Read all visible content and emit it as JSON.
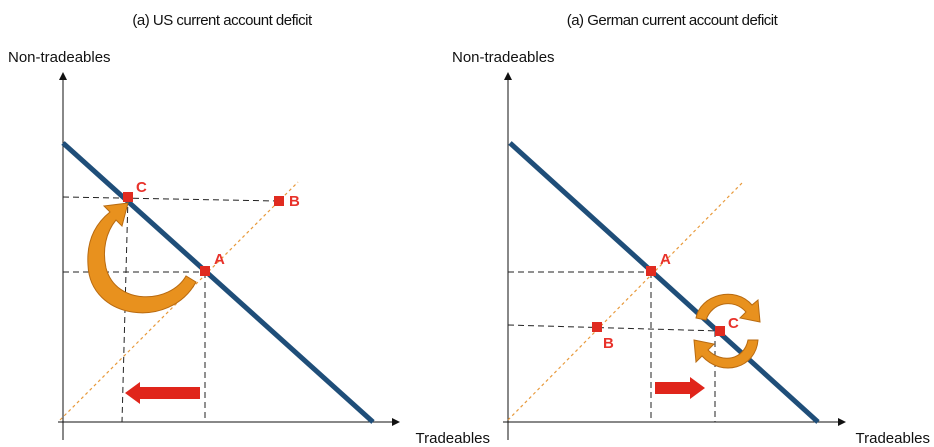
{
  "panels": [
    {
      "title": "(a) US current account deficit",
      "y_label": "Non-tradeables",
      "x_label": "Tradeables",
      "points": [
        "A",
        "B",
        "C"
      ]
    },
    {
      "title": "(a) German current account deficit",
      "y_label": "Non-tradeables",
      "x_label": "Tradeables",
      "points": [
        "A",
        "B",
        "C"
      ]
    }
  ]
}
